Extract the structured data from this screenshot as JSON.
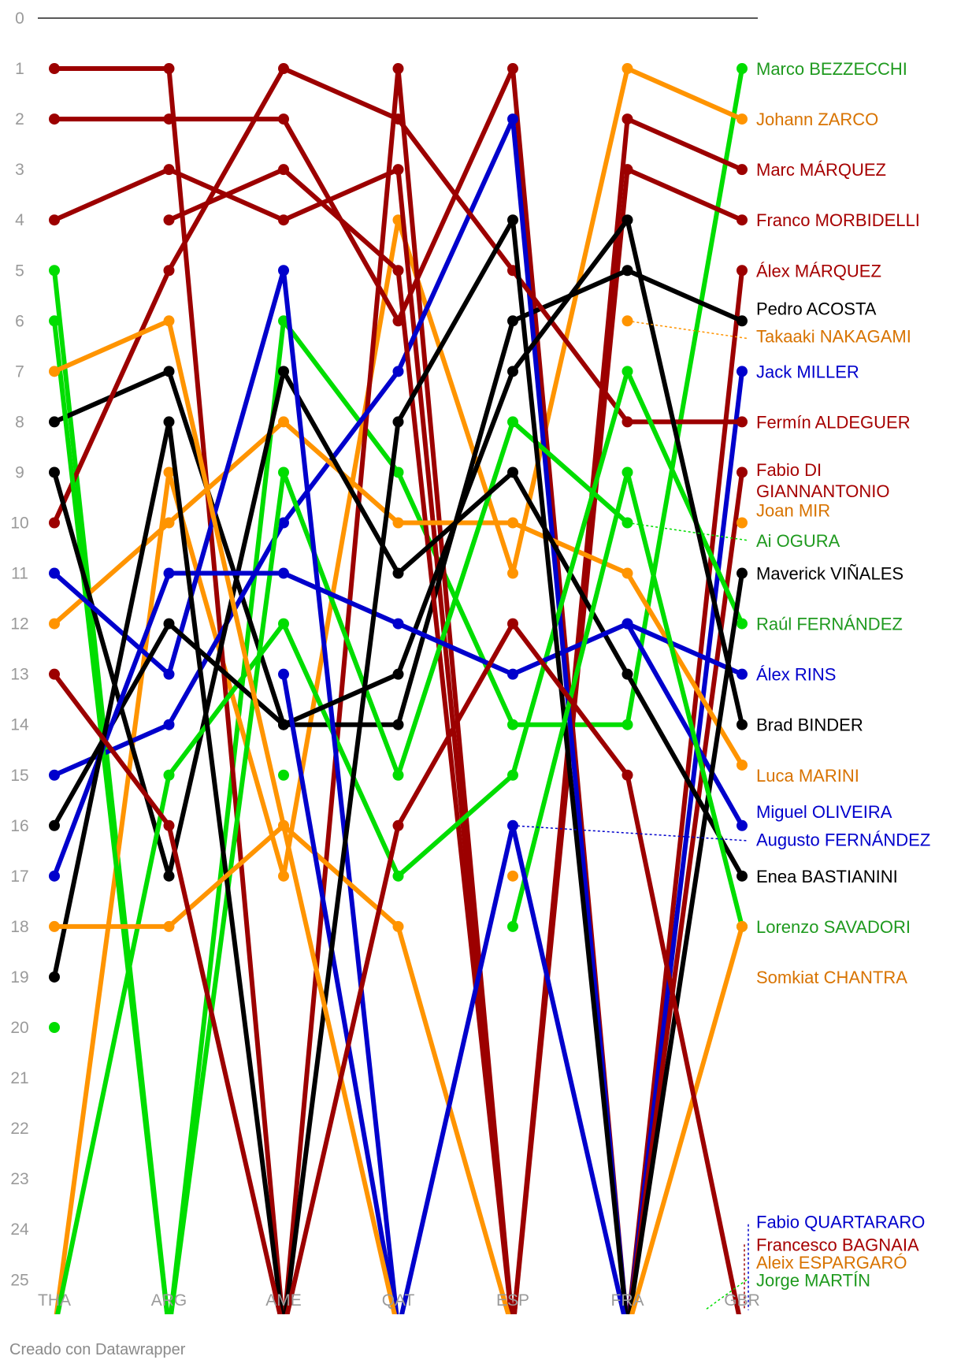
{
  "chart_data": {
    "type": "line",
    "x": [
      "THA",
      "ARG",
      "AME",
      "QAT",
      "ESP",
      "FRA",
      "GBR"
    ],
    "y_ticks": [
      0,
      1,
      2,
      3,
      4,
      5,
      6,
      7,
      8,
      9,
      10,
      11,
      12,
      13,
      14,
      15,
      16,
      17,
      18,
      19,
      20,
      21,
      22,
      23,
      24,
      25
    ],
    "ylim": [
      0,
      25
    ],
    "y_inverted": true,
    "series": [
      {
        "name": "Marco BEZZECCHI",
        "color": "#00dd00",
        "values": [
          5,
          26,
          6,
          9,
          14,
          14,
          1
        ]
      },
      {
        "name": "Johann ZARCO",
        "color": "#ff9400",
        "values": [
          26,
          9,
          17,
          4,
          11,
          1,
          2
        ]
      },
      {
        "name": "Marc MÁRQUEZ",
        "color": "#9c0000",
        "values": [
          1,
          1,
          26,
          1,
          26,
          2,
          3
        ]
      },
      {
        "name": "Franco MORBIDELLI",
        "color": "#9c0000",
        "values": [
          4,
          3,
          4,
          3,
          26,
          3,
          4
        ]
      },
      {
        "name": "Álex MÁRQUEZ",
        "color": "#9c0000",
        "values": [
          2,
          2,
          2,
          6,
          1,
          26,
          5
        ]
      },
      {
        "name": "Pedro ACOSTA",
        "color": "#000000",
        "values": [
          8,
          7,
          14,
          14,
          6,
          5,
          6
        ]
      },
      {
        "name": "Takaaki NAKAGAMI",
        "color": "#ff9400",
        "values": [
          null,
          null,
          null,
          null,
          null,
          6,
          null
        ]
      },
      {
        "name": "Jack MILLER",
        "color": "#0000cc",
        "values": [
          15,
          14,
          10,
          7,
          2,
          26,
          7
        ]
      },
      {
        "name": "Fermín ALDEGUER",
        "color": "#9c0000",
        "values": [
          10,
          5,
          1,
          2,
          5,
          8,
          8
        ]
      },
      {
        "name": "Fabio DI GIANNANTONIO",
        "color": "#9c0000",
        "values": [
          null,
          4,
          3,
          5,
          26,
          26,
          9
        ]
      },
      {
        "name": "Joan MIR",
        "color": "#ff9400",
        "values": [
          12,
          10,
          8,
          10,
          10,
          11,
          14.8
        ]
      },
      {
        "name": "Ai OGURA",
        "color": "#00dd00",
        "values": [
          6,
          26,
          9,
          15,
          8,
          10,
          null
        ]
      },
      {
        "name": "Maverick VIÑALES",
        "color": "#000000",
        "values": [
          9,
          17,
          7,
          11,
          9,
          13,
          17
        ]
      },
      {
        "name": "Raúl FERNÁNDEZ",
        "color": "#00dd00",
        "values": [
          26,
          15,
          12,
          17,
          15,
          7,
          12
        ]
      },
      {
        "name": "Álex RINS",
        "color": "#0000cc",
        "values": [
          11,
          13,
          5,
          26,
          null,
          12,
          13
        ]
      },
      {
        "name": "Brad BINDER",
        "color": "#000000",
        "values": [
          16,
          12,
          14,
          13,
          7,
          4,
          14
        ]
      },
      {
        "name": "Luca MARINI",
        "color": "#ff9400",
        "values": [
          7,
          6,
          16,
          18,
          26,
          null,
          10
        ]
      },
      {
        "name": "Miguel OLIVEIRA",
        "color": "#0000cc",
        "values": [
          null,
          null,
          13,
          26,
          null,
          null,
          null
        ]
      },
      {
        "name": "Augusto FERNÁNDEZ",
        "color": "#0000cc",
        "values": [
          17,
          11,
          11,
          12,
          13,
          12,
          16
        ]
      },
      {
        "name": "Enea BASTIANINI",
        "color": "#000000",
        "values": [
          19,
          8,
          26,
          8,
          4,
          26,
          11
        ]
      },
      {
        "name": "Lorenzo SAVADORI",
        "color": "#00dd00",
        "values": [
          null,
          null,
          null,
          null,
          18,
          9,
          18
        ]
      },
      {
        "name": "Somkiat CHANTRA",
        "color": "#ff9400",
        "values": [
          18,
          18,
          16,
          26,
          null,
          26,
          18
        ]
      },
      {
        "name": "Fabio QUARTARARO",
        "color": "#0000cc",
        "values": [
          null,
          null,
          null,
          26,
          16,
          26,
          null
        ]
      },
      {
        "name": "Francesco BAGNAIA",
        "color": "#9c0000",
        "values": [
          13,
          16,
          26,
          16,
          12,
          15,
          26
        ]
      },
      {
        "name": "Aleix ESPARGARÓ",
        "color": "#ff9400",
        "values": [
          null,
          null,
          null,
          null,
          17,
          null,
          null
        ]
      },
      {
        "name": "Jorge MARTÍN",
        "color": "#00dd00",
        "values": [
          20,
          null,
          15,
          null,
          null,
          null,
          null
        ]
      }
    ],
    "labels": [
      {
        "text": "Marco BEZZECCHI",
        "color": "#1f9a1f",
        "rank": 1
      },
      {
        "text": "Johann ZARCO",
        "color": "#d87300",
        "rank": 2
      },
      {
        "text": "Marc MÁRQUEZ",
        "color": "#a60000",
        "rank": 3
      },
      {
        "text": "Franco MORBIDELLI",
        "color": "#a60000",
        "rank": 4
      },
      {
        "text": "Álex MÁRQUEZ",
        "color": "#a60000",
        "rank": 5
      },
      {
        "text": "Pedro ACOSTA",
        "color": "#000000",
        "rank": 5.75
      },
      {
        "text": "Takaaki NAKAGAMI",
        "color": "#d87300",
        "rank": 6.3
      },
      {
        "text": "Jack MILLER",
        "color": "#0000cc",
        "rank": 7
      },
      {
        "text": "Fermín ALDEGUER",
        "color": "#a60000",
        "rank": 8
      },
      {
        "text": "Fabio DI",
        "color": "#a60000",
        "rank": 8.95
      },
      {
        "text": "GIANNANTONIO",
        "color": "#a60000",
        "rank": 9.37
      },
      {
        "text": "Joan MIR",
        "color": "#d87300",
        "rank": 9.75
      },
      {
        "text": "Ai OGURA",
        "color": "#1f9a1f",
        "rank": 10.35
      },
      {
        "text": "Maverick VIÑALES",
        "color": "#000000",
        "rank": 11
      },
      {
        "text": "Raúl FERNÁNDEZ",
        "color": "#1f9a1f",
        "rank": 12
      },
      {
        "text": "Álex RINS",
        "color": "#0000cc",
        "rank": 13
      },
      {
        "text": "Brad BINDER",
        "color": "#000000",
        "rank": 14
      },
      {
        "text": "Luca MARINI",
        "color": "#d87300",
        "rank": 15
      },
      {
        "text": "Miguel OLIVEIRA",
        "color": "#0000cc",
        "rank": 15.72
      },
      {
        "text": "Augusto FERNÁNDEZ",
        "color": "#0000cc",
        "rank": 16.28
      },
      {
        "text": "Enea BASTIANINI",
        "color": "#000000",
        "rank": 17
      },
      {
        "text": "Lorenzo SAVADORI",
        "color": "#1f9a1f",
        "rank": 18
      },
      {
        "text": "Somkiat CHANTRA",
        "color": "#d87300",
        "rank": 19
      },
      {
        "text": "Fabio QUARTARARO",
        "color": "#0000cc",
        "rank": 23.85
      },
      {
        "text": "Francesco BAGNAIA",
        "color": "#a60000",
        "rank": 24.3
      },
      {
        "text": "Aleix ESPARGARÓ",
        "color": "#d87300",
        "rank": 24.65
      },
      {
        "text": "Jorge MARTÍN",
        "color": "#1f9a1f",
        "rank": 25
      }
    ]
  },
  "footer": "Creado con Datawrapper"
}
